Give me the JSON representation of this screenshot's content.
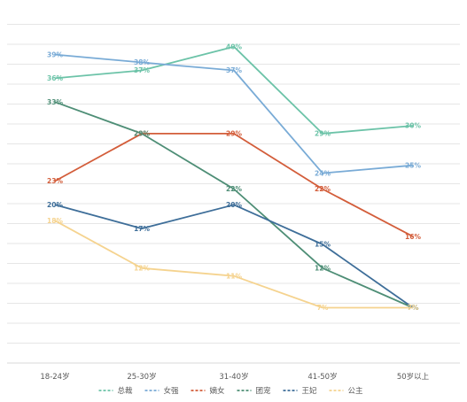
{
  "chart_data": {
    "type": "line",
    "categories": [
      "18-24岁",
      "25-30岁",
      "31-40岁",
      "41-50岁",
      "50岁以上"
    ],
    "ylim": [
      0,
      45
    ],
    "grid": true,
    "legend_position": "bottom",
    "data_label_suffix": "%",
    "series": [
      {
        "name": "总裁",
        "color": "#6cc3a8",
        "values": [
          36,
          37,
          40,
          29,
          30
        ]
      },
      {
        "name": "女强",
        "color": "#79abd6",
        "values": [
          39,
          38,
          37,
          24,
          25
        ]
      },
      {
        "name": "嫡女",
        "color": "#d35d3a",
        "values": [
          23,
          29,
          29,
          22,
          16
        ]
      },
      {
        "name": "团宠",
        "color": "#4e8e76",
        "values": [
          33,
          29,
          22,
          12,
          7
        ]
      },
      {
        "name": "王妃",
        "color": "#3e6e99",
        "values": [
          20,
          17,
          20,
          15,
          7
        ]
      },
      {
        "name": "公主",
        "color": "#f5d38f",
        "values": [
          18,
          12,
          11,
          7,
          7
        ]
      }
    ]
  }
}
